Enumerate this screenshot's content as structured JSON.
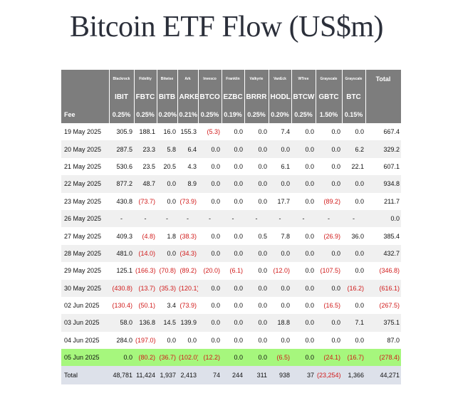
{
  "title": "Bitcoin ETF Flow (US$m)",
  "header": {
    "issuers": [
      "Blackrock",
      "Fidelity",
      "Bitwise",
      "Ark",
      "Invesco",
      "Franklin",
      "Valkyrie",
      "VanEck",
      "WTree",
      "Grayscale",
      "Grayscale"
    ],
    "total_label": "Total",
    "tickers": [
      "IBIT",
      "FBTC",
      "BITB",
      "ARKB",
      "BTCO",
      "EZBC",
      "BRRR",
      "HODL",
      "BTCW",
      "GBTC",
      "BTC"
    ],
    "fee_label": "Fee",
    "fees": [
      "0.25%",
      "0.25%",
      "0.20%",
      "0.21%",
      "0.25%",
      "0.19%",
      "0.25%",
      "0.20%",
      "0.25%",
      "1.50%",
      "0.15%"
    ]
  },
  "rows": [
    {
      "date": "19 May 2025",
      "values": [
        "305.9",
        "188.1",
        "16.0",
        "155.3",
        "(5.3)",
        "0.0",
        "0.0",
        "7.4",
        "0.0",
        "0.0",
        "0.0"
      ],
      "total": "667.4"
    },
    {
      "date": "20 May 2025",
      "values": [
        "287.5",
        "23.3",
        "5.8",
        "6.4",
        "0.0",
        "0.0",
        "0.0",
        "0.0",
        "0.0",
        "0.0",
        "6.2"
      ],
      "total": "329.2"
    },
    {
      "date": "21 May 2025",
      "values": [
        "530.6",
        "23.5",
        "20.5",
        "4.3",
        "0.0",
        "0.0",
        "0.0",
        "6.1",
        "0.0",
        "0.0",
        "22.1"
      ],
      "total": "607.1"
    },
    {
      "date": "22 May 2025",
      "values": [
        "877.2",
        "48.7",
        "0.0",
        "8.9",
        "0.0",
        "0.0",
        "0.0",
        "0.0",
        "0.0",
        "0.0",
        "0.0"
      ],
      "total": "934.8"
    },
    {
      "date": "23 May 2025",
      "values": [
        "430.8",
        "(73.7)",
        "0.0",
        "(73.9)",
        "0.0",
        "0.0",
        "0.0",
        "17.7",
        "0.0",
        "(89.2)",
        "0.0"
      ],
      "total": "211.7"
    },
    {
      "date": "26 May 2025",
      "values": [
        "-",
        "-",
        "-",
        "-",
        "-",
        "-",
        "-",
        "-",
        "-",
        "-",
        "-"
      ],
      "total": "0.0"
    },
    {
      "date": "27 May 2025",
      "values": [
        "409.3",
        "(4.8)",
        "1.8",
        "(38.3)",
        "0.0",
        "0.0",
        "0.5",
        "7.8",
        "0.0",
        "(26.9)",
        "36.0"
      ],
      "total": "385.4"
    },
    {
      "date": "28 May 2025",
      "values": [
        "481.0",
        "(14.0)",
        "0.0",
        "(34.3)",
        "0.0",
        "0.0",
        "0.0",
        "0.0",
        "0.0",
        "0.0",
        "0.0"
      ],
      "total": "432.7"
    },
    {
      "date": "29 May 2025",
      "values": [
        "125.1",
        "(166.3)",
        "(70.8)",
        "(89.2)",
        "(20.0)",
        "(6.1)",
        "0.0",
        "(12.0)",
        "0.0",
        "(107.5)",
        "0.0"
      ],
      "total": "(346.8)"
    },
    {
      "date": "30 May 2025",
      "values": [
        "(430.8)",
        "(13.7)",
        "(35.3)",
        "(120.1)",
        "0.0",
        "0.0",
        "0.0",
        "0.0",
        "0.0",
        "0.0",
        "(16.2)"
      ],
      "total": "(616.1)"
    },
    {
      "date": "02 Jun 2025",
      "values": [
        "(130.4)",
        "(50.1)",
        "3.4",
        "(73.9)",
        "0.0",
        "0.0",
        "0.0",
        "0.0",
        "0.0",
        "(16.5)",
        "0.0"
      ],
      "total": "(267.5)"
    },
    {
      "date": "03 Jun 2025",
      "values": [
        "58.0",
        "136.8",
        "14.5",
        "139.9",
        "0.0",
        "0.0",
        "0.0",
        "18.8",
        "0.0",
        "0.0",
        "7.1"
      ],
      "total": "375.1"
    },
    {
      "date": "04 Jun 2025",
      "values": [
        "284.0",
        "(197.0)",
        "0.0",
        "0.0",
        "0.0",
        "0.0",
        "0.0",
        "0.0",
        "0.0",
        "0.0",
        "0.0"
      ],
      "total": "87.0"
    },
    {
      "date": "05 Jun 2025",
      "values": [
        "0.0",
        "(80.2)",
        "(36.7)",
        "(102.0)",
        "(12.2)",
        "0.0",
        "0.0",
        "(6.5)",
        "0.0",
        "(24.1)",
        "(16.7)"
      ],
      "total": "(278.4)",
      "highlight": true
    }
  ],
  "totals": {
    "label": "Total",
    "values": [
      "48,781",
      "11,424",
      "1,937",
      "2,413",
      "74",
      "244",
      "311",
      "938",
      "37",
      "(23,254)",
      "1,366"
    ],
    "total": "44,271"
  }
}
